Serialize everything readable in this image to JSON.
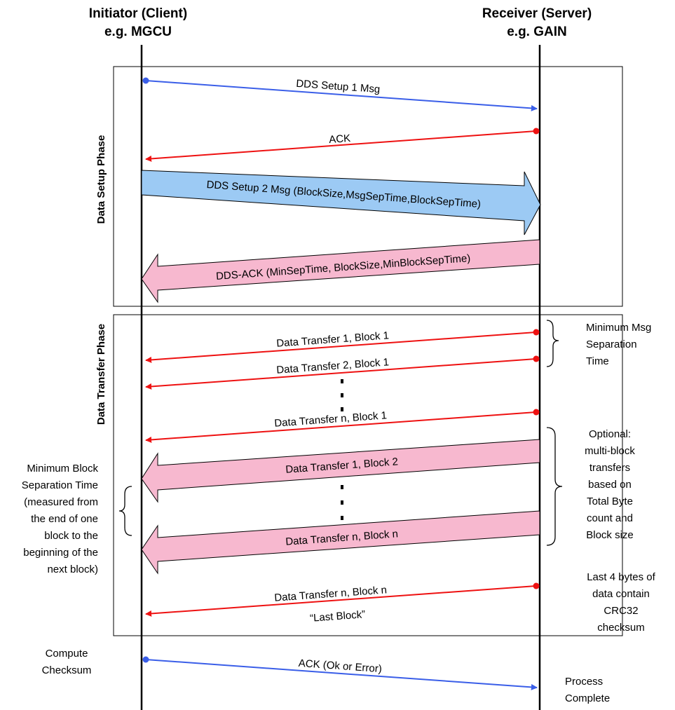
{
  "participants": {
    "initiator": {
      "line1": "Initiator (Client)",
      "line2": "e.g. MGCU"
    },
    "receiver": {
      "line1": "Receiver (Server)",
      "line2": "e.g. GAIN"
    }
  },
  "phases": {
    "setup": "Data Setup Phase",
    "transfer": "Data Transfer Phase"
  },
  "messages": {
    "dds_setup1": "DDS Setup 1 Msg",
    "ack1": "ACK",
    "dds_setup2": "DDS Setup 2 Msg (BlockSize,MsgSepTime,BlockSepTime)",
    "dds_ack": "DDS-ACK (MinSepTime, BlockSize,MinBlockSepTime)",
    "dt_1_1": "Data Transfer 1, Block 1",
    "dt_2_1": "Data Transfer 2, Block 1",
    "dt_n_1": "Data Transfer n, Block 1",
    "dt_1_2": "Data Transfer 1, Block 2",
    "dt_n_n": "Data Transfer n, Block n",
    "dt_last": "Data Transfer n, Block n",
    "last_block": "“Last Block”",
    "ack_final": "ACK (Ok or Error)"
  },
  "notes": {
    "min_msg_sep": [
      "Minimum Msg",
      "Separation",
      "Time"
    ],
    "optional": [
      "Optional:",
      "multi-block",
      "transfers",
      "based on",
      "Total Byte",
      "count and",
      "Block size"
    ],
    "min_block_sep": [
      "Minimum Block",
      "Separation Time",
      "(measured from",
      "the end of one",
      "block to the",
      "beginning of the",
      "next block)"
    ],
    "last_bytes": [
      "Last 4 bytes of",
      "data contain",
      "CRC32",
      "checksum"
    ],
    "compute": [
      "Compute",
      "Checksum"
    ],
    "process": [
      "Process",
      "Complete"
    ]
  },
  "colors": {
    "blue": "#3a5ee8",
    "red": "#ee1111",
    "light_blue": "#9ccaf4",
    "pink": "#f7b8cf"
  }
}
